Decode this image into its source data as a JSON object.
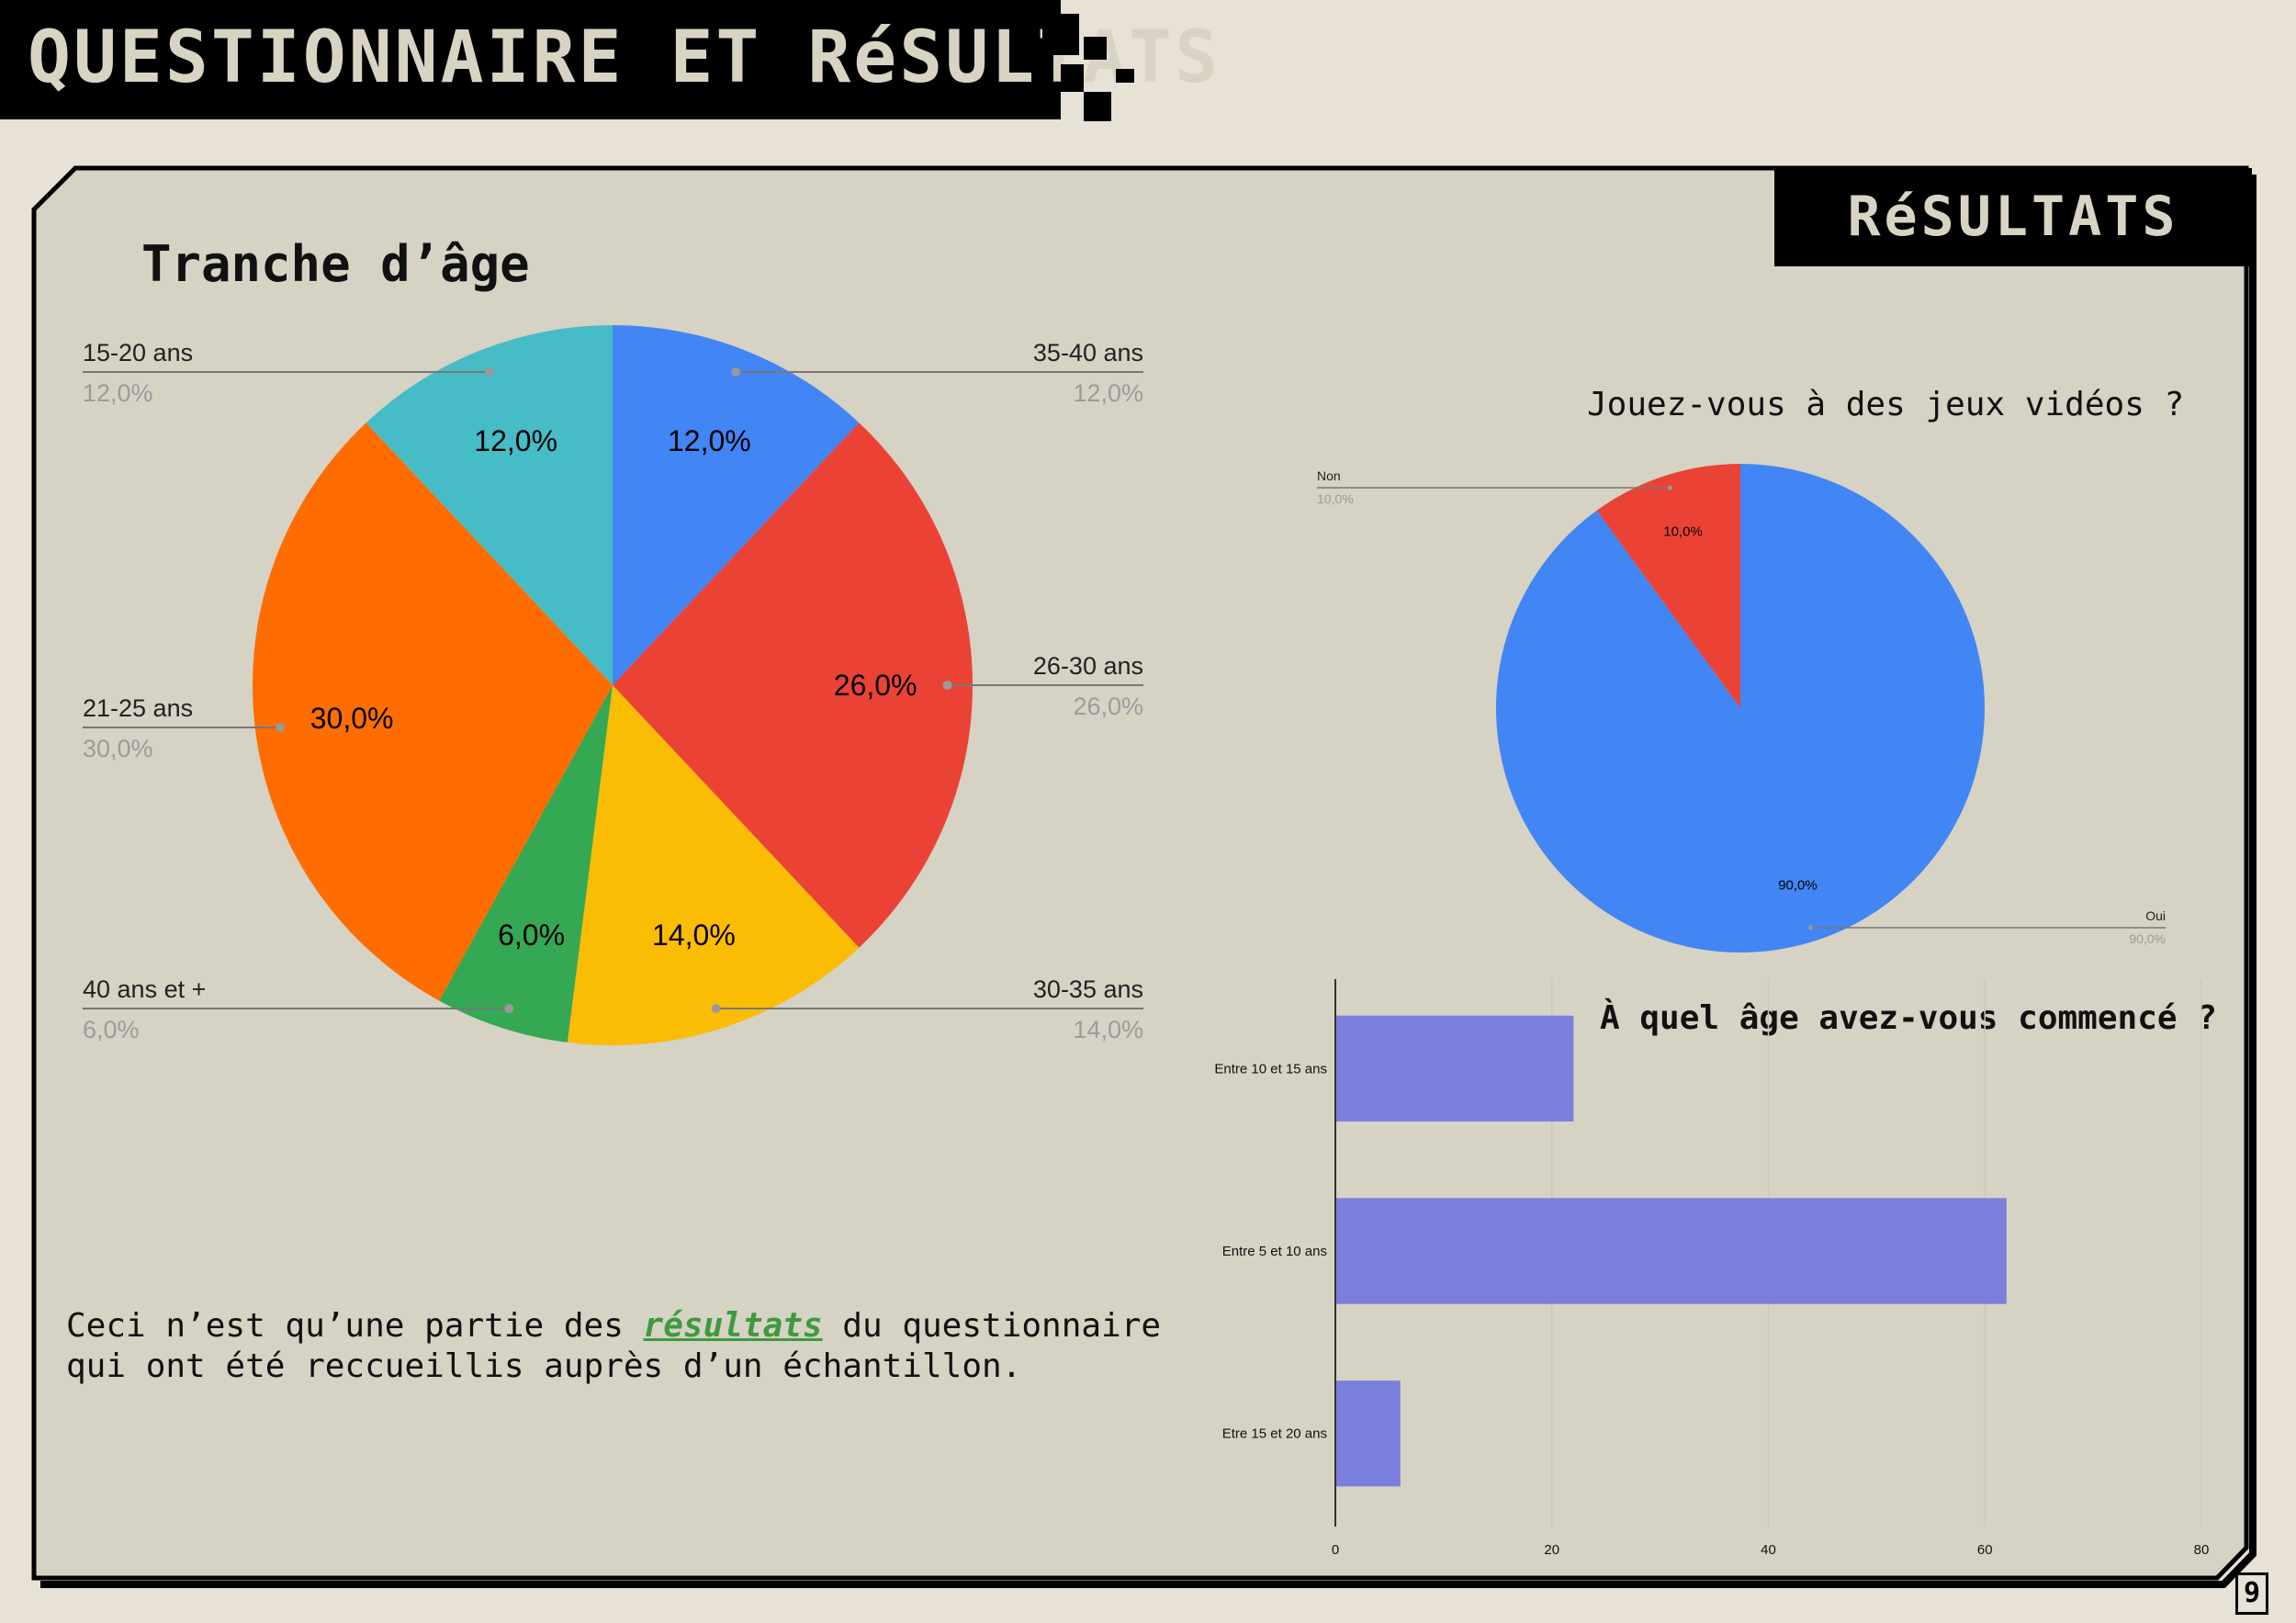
{
  "header": {
    "title": "QUESTIONNAIRE ET RéSULTATS"
  },
  "results_tab": {
    "label": "RéSULTATS"
  },
  "age_chart": {
    "heading": "Tranche d’âge"
  },
  "games_chart": {
    "heading": "Jouez-vous à des jeux vidéos ?"
  },
  "start_chart": {
    "heading": "À quel âge avez-vous commencé ?"
  },
  "note": {
    "before": "Ceci n’est qu’une partie des ",
    "highlight": "résultats",
    "after_line1": " du questionnaire",
    "line2": "qui ont été reccueillis auprès d’un échantillon."
  },
  "page_number": "9",
  "colors": {
    "blue": "#4285f4",
    "red": "#ea4335",
    "yellow": "#fbbc04",
    "green": "#34a853",
    "orange": "#ff6d01",
    "teal": "#46bdc6",
    "bar": "#7b7fdc",
    "highlight": "#3d9a3d"
  },
  "chart_data": [
    {
      "type": "pie",
      "title": "Tranche d’âge",
      "categories": [
        "35-40 ans",
        "26-30 ans",
        "30-35 ans",
        "40 ans et +",
        "21-25 ans",
        "15-20 ans"
      ],
      "values": [
        12.0,
        26.0,
        14.0,
        6.0,
        30.0,
        12.0
      ],
      "labels": [
        "12,0%",
        "26,0%",
        "14,0%",
        "6,0%",
        "30,0%",
        "12,0%"
      ],
      "colors": [
        "#4285f4",
        "#ea4335",
        "#fbbc04",
        "#34a853",
        "#ff6d01",
        "#46bdc6"
      ]
    },
    {
      "type": "pie",
      "title": "Jouez-vous à des jeux vidéos ?",
      "categories": [
        "Oui",
        "Non"
      ],
      "values": [
        90.0,
        10.0
      ],
      "labels": [
        "90,0%",
        "10,0%"
      ],
      "colors": [
        "#4285f4",
        "#ea4335"
      ]
    },
    {
      "type": "bar",
      "orientation": "horizontal",
      "title": "À quel âge avez-vous commencé ?",
      "categories": [
        "Entre 10 et 15 ans",
        "Entre 5 et 10 ans",
        "Etre 15 et 20 ans"
      ],
      "values": [
        22,
        62,
        6
      ],
      "xlim": [
        0,
        80
      ],
      "xticks": [
        "0",
        "20",
        "40",
        "60",
        "80"
      ],
      "grid": true
    }
  ]
}
